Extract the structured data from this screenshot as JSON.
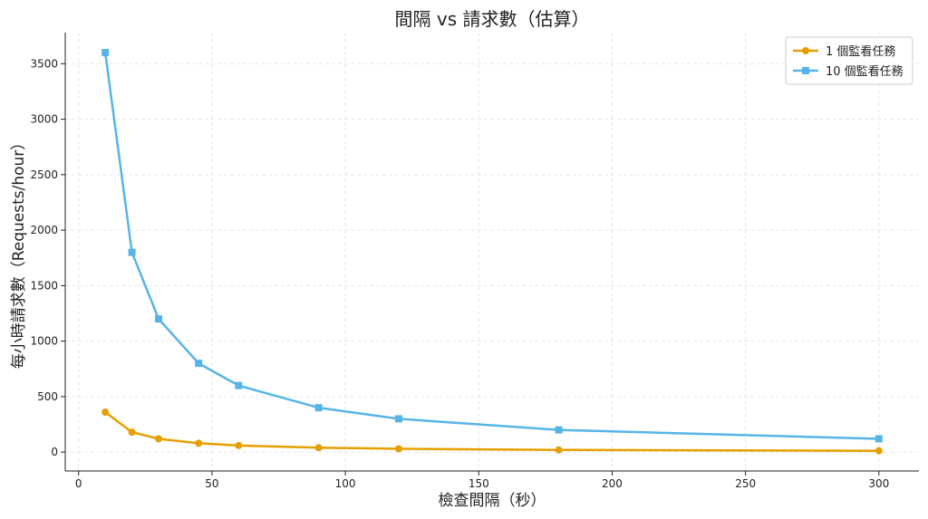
{
  "chart_data": {
    "type": "line",
    "title": "間隔 vs 請求數（估算）",
    "xlabel": "檢查間隔（秒）",
    "ylabel": "每小時請求數（Requests/hour）",
    "x": [
      10,
      20,
      30,
      45,
      60,
      90,
      120,
      180,
      300
    ],
    "series": [
      {
        "name": "1 個監看任務",
        "color": "#E69F00",
        "marker": "circle",
        "values": [
          360,
          180,
          120,
          80,
          60,
          40,
          30,
          20,
          12
        ]
      },
      {
        "name": "10 個監看任務",
        "color": "#56B4E9",
        "marker": "square",
        "values": [
          3600,
          1800,
          1200,
          800,
          600,
          400,
          300,
          200,
          120
        ]
      }
    ],
    "xlim": [
      -5,
      315
    ],
    "ylim": [
      -170,
      3780
    ],
    "xticks": [
      0,
      50,
      100,
      150,
      200,
      250,
      300
    ],
    "yticks": [
      0,
      500,
      1000,
      1500,
      2000,
      2500,
      3000,
      3500
    ],
    "grid": true,
    "legend_position": "top-right"
  }
}
